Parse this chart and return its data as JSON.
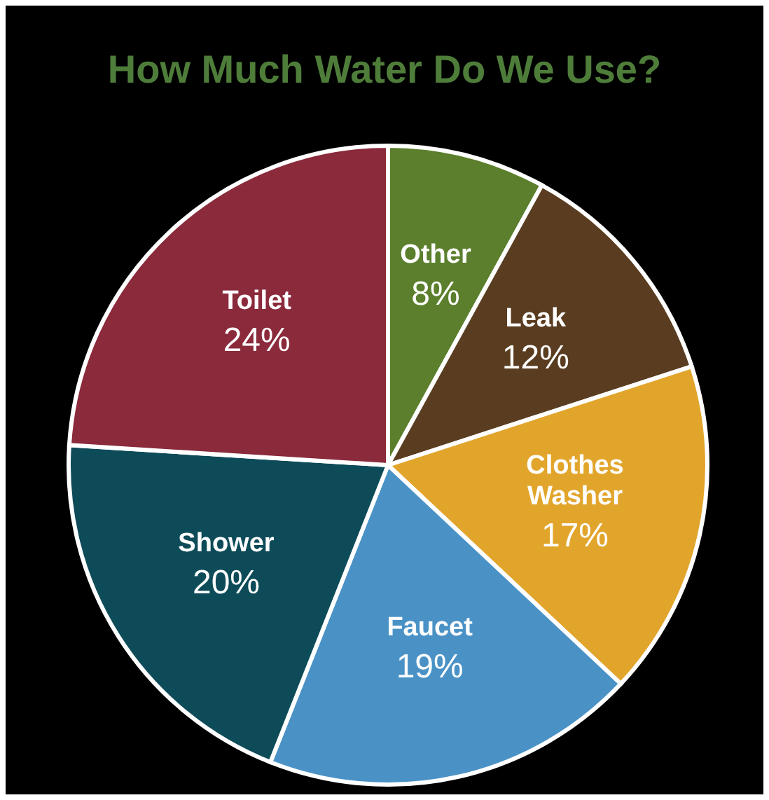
{
  "chart_data": {
    "type": "pie",
    "title": "How Much Water Do We Use?",
    "categories": [
      "Other",
      "Leak",
      "Clothes Washer",
      "Faucet",
      "Shower",
      "Toilet"
    ],
    "values": [
      8,
      12,
      17,
      19,
      20,
      24
    ],
    "value_labels": [
      "8%",
      "12%",
      "17%",
      "19%",
      "20%",
      "24%"
    ],
    "colors": [
      "#5b7f2c",
      "#5a3d20",
      "#e2a52c",
      "#4a92c6",
      "#0e4b58",
      "#8a2a3b"
    ],
    "legend": false
  }
}
